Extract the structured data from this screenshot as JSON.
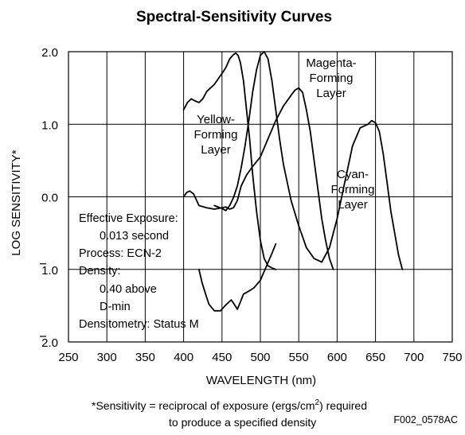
{
  "chart_data": {
    "type": "line",
    "title": "Spectral-Sensitivity Curves",
    "xlabel": "WAVELENGTH (nm)",
    "ylabel": "LOG SENSITIVITY*",
    "xlim": [
      250,
      750
    ],
    "ylim": [
      -2.0,
      2.0
    ],
    "x_ticks": [
      "250",
      "300",
      "350",
      "400",
      "450",
      "500",
      "550",
      "600",
      "650",
      "700",
      "750"
    ],
    "x_tick_values": [
      250,
      300,
      350,
      400,
      450,
      500,
      550,
      600,
      650,
      700,
      750
    ],
    "y_ticks": [
      {
        "value": 2.0,
        "label": "2.0",
        "bar": false
      },
      {
        "value": 1.0,
        "label": "1.0",
        "bar": false
      },
      {
        "value": 0.0,
        "label": "0.0",
        "bar": false
      },
      {
        "value": -1.0,
        "label": "1.0",
        "bar": true
      },
      {
        "value": -2.0,
        "label": "2.0",
        "bar": true
      }
    ],
    "grid": true,
    "series": [
      {
        "name": "Yellow-Forming Layer",
        "label_lines": [
          "Yellow-",
          "Forming",
          "Layer"
        ],
        "segments": [
          {
            "x": [
              400,
              405,
              410,
              415,
              420,
              425,
              430,
              440,
              450,
              455,
              460,
              465,
              468,
              471,
              474,
              478,
              482,
              486,
              490,
              495,
              500,
              505,
              510,
              515,
              520
            ],
            "y": [
              1.2,
              1.3,
              1.35,
              1.32,
              1.3,
              1.35,
              1.45,
              1.55,
              1.7,
              1.78,
              1.9,
              1.96,
              1.98,
              1.95,
              1.85,
              1.6,
              1.2,
              0.8,
              0.3,
              -0.2,
              -0.6,
              -0.85,
              -0.95,
              -0.98,
              -1.0
            ]
          },
          {
            "x": [
              420,
              424,
              428,
              433,
              440,
              448,
              455,
              462,
              466,
              470,
              474,
              478,
              485,
              492,
              500,
              507,
              515,
              520
            ],
            "y": [
              -1.0,
              -1.18,
              -1.32,
              -1.48,
              -1.57,
              -1.57,
              -1.49,
              -1.42,
              -1.48,
              -1.55,
              -1.45,
              -1.34,
              -1.3,
              -1.25,
              -1.15,
              -0.98,
              -0.78,
              -0.65
            ]
          }
        ]
      },
      {
        "name": "Magenta-Forming Layer",
        "label_lines": [
          "Magenta-",
          "Forming",
          "Layer"
        ],
        "segments": [
          {
            "x": [
              400,
              404,
              408,
              413,
              420,
              430,
              440,
              450,
              455,
              460,
              465,
              470,
              475,
              482,
              490,
              500,
              510,
              520,
              530,
              540,
              545,
              550,
              555,
              560,
              565,
              570,
              575,
              580,
              585,
              590,
              595
            ],
            "y": [
              0.0,
              0.06,
              0.08,
              0.04,
              -0.12,
              -0.15,
              -0.17,
              -0.15,
              -0.14,
              -0.17,
              -0.15,
              -0.05,
              0.15,
              0.3,
              0.42,
              0.55,
              0.8,
              1.05,
              1.25,
              1.4,
              1.47,
              1.5,
              1.44,
              1.2,
              0.9,
              0.5,
              0.1,
              -0.3,
              -0.6,
              -0.85,
              -1.0
            ]
          }
        ]
      },
      {
        "name": "Cyan-Forming Layer",
        "label_lines": [
          "Cyan-",
          "Forming",
          "Layer"
        ],
        "segments": [
          {
            "x": [
              440,
              450,
              455,
              460,
              465,
              470,
              475,
              480,
              485,
              490,
              495,
              500,
              505,
              510,
              515,
              520,
              525,
              530,
              540,
              550,
              560,
              570,
              580,
              590,
              600,
              605,
              610,
              615,
              620,
              630,
              640,
              645,
              650,
              655,
              660,
              665,
              670,
              675,
              680,
              685
            ],
            "y": [
              -0.12,
              -0.16,
              -0.19,
              -0.12,
              -0.01,
              0.15,
              0.4,
              0.7,
              1.05,
              1.45,
              1.75,
              1.95,
              2.0,
              1.9,
              1.6,
              1.2,
              0.8,
              0.45,
              -0.05,
              -0.4,
              -0.7,
              -0.85,
              -0.9,
              -0.7,
              -0.3,
              -0.05,
              0.2,
              0.45,
              0.7,
              0.95,
              1.0,
              1.05,
              1.02,
              0.9,
              0.6,
              0.2,
              -0.2,
              -0.5,
              -0.8,
              -1.0
            ]
          }
        ]
      }
    ],
    "annotations": {
      "conditions": [
        "Effective Exposure:",
        "0.013 second",
        "Process:  ECN-2",
        "Density:",
        "0.40 above",
        "D-min",
        "Densitometry:   Status M"
      ],
      "footnote_line1_pre": "*Sensitivity = reciprocal of exposure (ergs/cm",
      "footnote_sup": "2",
      "footnote_line1_post": ") required",
      "footnote_line2": "to produce a specified density",
      "code": "F002_0578AC"
    }
  }
}
